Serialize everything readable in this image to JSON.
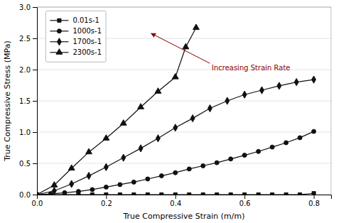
{
  "chart_data": {
    "type": "line",
    "xlabel": "True Compressive Strain (m/m)",
    "ylabel": "True Compressive Stress (MPa)",
    "xlim": [
      0.0,
      0.85
    ],
    "ylim": [
      0.0,
      3.0
    ],
    "xticks": [
      {
        "value": 0.0,
        "label": "0.0"
      },
      0.2,
      0.4,
      0.6,
      0.8
    ],
    "yticks": [
      {
        "value": 0.0,
        "label": "0.0"
      },
      0.5,
      {
        "value": 1.0,
        "label": "1.0"
      },
      1.5,
      {
        "value": 2.0,
        "label": "2.0"
      },
      2.5,
      {
        "value": 3.0,
        "label": "3.0"
      }
    ],
    "grid": "y",
    "legend": "upper left",
    "series": [
      {
        "name": "0.01s-1",
        "color": "#111111",
        "marker": "square",
        "x": [
          0.0,
          0.04,
          0.08,
          0.12,
          0.16,
          0.2,
          0.24,
          0.28,
          0.32,
          0.36,
          0.4,
          0.44,
          0.48,
          0.52,
          0.56,
          0.6,
          0.64,
          0.68,
          0.72,
          0.76,
          0.8
        ],
        "values": [
          0.0,
          0.0,
          0.0,
          0.0,
          0.0,
          0.0,
          0.0,
          0.0,
          0.0,
          0.0,
          0.0,
          0.0,
          0.0,
          0.0,
          0.0,
          0.0,
          0.0,
          0.0,
          0.0,
          0.0,
          0.02
        ]
      },
      {
        "name": "1000s-1",
        "color": "#111111",
        "marker": "circle",
        "x": [
          0.0,
          0.04,
          0.08,
          0.12,
          0.16,
          0.2,
          0.24,
          0.28,
          0.32,
          0.36,
          0.4,
          0.44,
          0.48,
          0.52,
          0.56,
          0.6,
          0.64,
          0.68,
          0.72,
          0.76,
          0.8
        ],
        "values": [
          0.0,
          0.01,
          0.03,
          0.05,
          0.08,
          0.12,
          0.16,
          0.2,
          0.25,
          0.3,
          0.35,
          0.41,
          0.46,
          0.51,
          0.57,
          0.63,
          0.69,
          0.76,
          0.83,
          0.91,
          1.01
        ]
      },
      {
        "name": "1700s-1",
        "color": "#111111",
        "marker": "diamond",
        "x": [
          0.0,
          0.05,
          0.1,
          0.15,
          0.2,
          0.25,
          0.3,
          0.35,
          0.4,
          0.45,
          0.5,
          0.55,
          0.6,
          0.65,
          0.7,
          0.75,
          0.8
        ],
        "values": [
          0.0,
          0.06,
          0.17,
          0.3,
          0.44,
          0.59,
          0.74,
          0.9,
          1.07,
          1.22,
          1.38,
          1.5,
          1.6,
          1.67,
          1.74,
          1.8,
          1.84
        ]
      },
      {
        "name": "2300s-1",
        "color": "#111111",
        "marker": "triangle",
        "x": [
          0.0,
          0.05,
          0.1,
          0.15,
          0.2,
          0.25,
          0.3,
          0.35,
          0.4,
          0.43,
          0.46
        ],
        "values": [
          0.0,
          0.15,
          0.42,
          0.68,
          0.9,
          1.14,
          1.4,
          1.65,
          1.88,
          2.36,
          2.67
        ]
      }
    ],
    "annotations": [
      {
        "text": "Increasing Strain Rate",
        "x": 0.505,
        "y": 2.08,
        "arrow_tail": [
          0.5,
          2.1
        ],
        "arrow_head": [
          0.33,
          2.58
        ]
      }
    ]
  }
}
